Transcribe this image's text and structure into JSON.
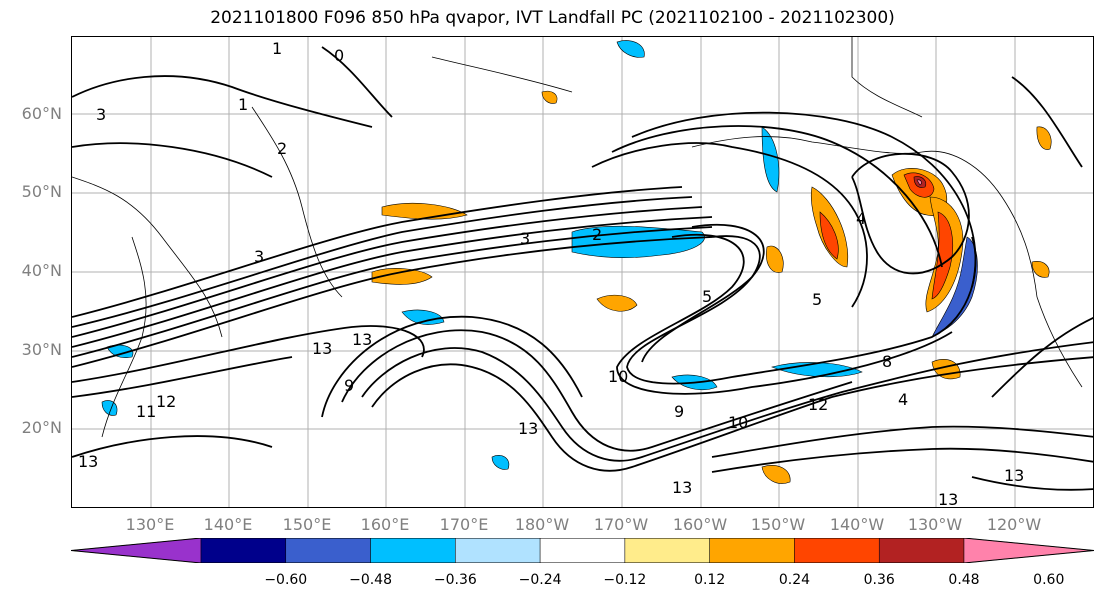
{
  "title": "2021101800 F096 850 hPa qvapor, IVT Landfall PC (2021102100 - 2021102300)",
  "map": {
    "lat_labels": [
      "60°N",
      "50°N",
      "40°N",
      "30°N",
      "20°N"
    ],
    "lon_labels": [
      "130°E",
      "140°E",
      "150°E",
      "160°E",
      "170°E",
      "180°W",
      "170°W",
      "160°W",
      "150°W",
      "140°W",
      "130°W",
      "120°W"
    ],
    "contour_labels": [
      "1",
      "0",
      "1",
      "3",
      "2",
      "3",
      "2",
      "3",
      "5",
      "4",
      "5",
      "13",
      "13",
      "9",
      "12",
      "11",
      "13",
      "10",
      "9",
      "10",
      "12",
      "13",
      "13",
      "13",
      "8",
      "4",
      "13"
    ]
  },
  "colorbar": {
    "ticks": [
      "−0.60",
      "−0.48",
      "−0.36",
      "−0.24",
      "−0.12",
      "0.12",
      "0.24",
      "0.36",
      "0.48",
      "0.60"
    ],
    "colors": [
      "#9932cc",
      "#00008b",
      "#3a5fcd",
      "#00bfff",
      "#b0e2ff",
      "#ffffff",
      "#ffec8b",
      "#ffa500",
      "#ff4500",
      "#b22222",
      "#ff82ab"
    ]
  }
}
